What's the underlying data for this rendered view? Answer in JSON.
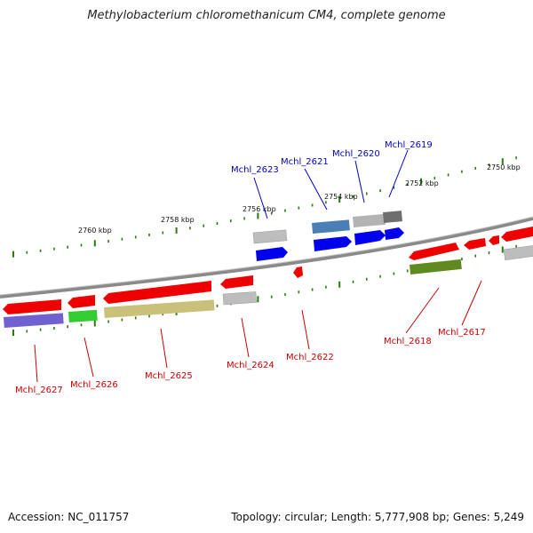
{
  "title": "Methylobacterium chloromethanicum CM4, complete genome",
  "footer": {
    "accession": "Accession: NC_011757",
    "topology": "Topology: circular; Length: 5,777,908 bp; Genes: 5,249"
  },
  "colors": {
    "forward_label": "#0000cc",
    "reverse_label": "#cc0000",
    "backbone": "#808080",
    "tick": "#2a7a10"
  },
  "scale_labels": [
    "2760 kbp",
    "2758 kbp",
    "2756 kbp",
    "2754 kbp",
    "2752 kbp",
    "2750 kbp"
  ],
  "forward_labels": [
    "Mchl_2623",
    "Mchl_2621",
    "Mchl_2620",
    "Mchl_2619"
  ],
  "reverse_labels": [
    "Mchl_2627",
    "Mchl_2626",
    "Mchl_2625",
    "Mchl_2624",
    "Mchl_2622",
    "Mchl_2618",
    "Mchl_2617"
  ]
}
